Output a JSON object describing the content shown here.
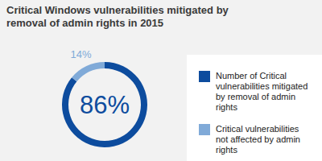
{
  "chart_data": {
    "type": "donut",
    "title": "Critical Windows vulnerabilities mitigated by removal of admin rights in 2015",
    "categories": [
      "Number of Critical vulnerabilities mitigated by removal of admin rights",
      "Critical vulnerabilities not affected by admin rights"
    ],
    "values": [
      86,
      14
    ],
    "value_labels": [
      "86%",
      "14%"
    ],
    "colors": [
      "#0d4c9e",
      "#80aad8"
    ],
    "data_labels": true,
    "legend": "right"
  }
}
